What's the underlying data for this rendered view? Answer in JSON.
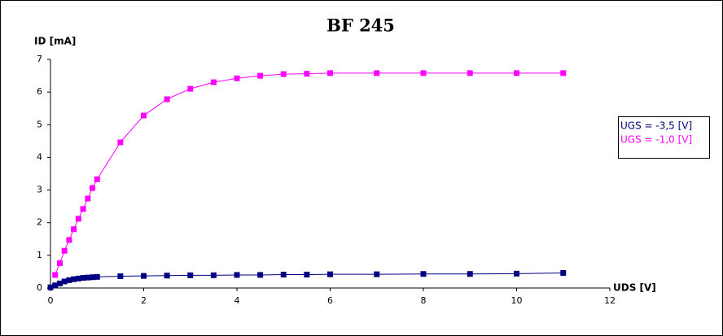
{
  "chart_data": {
    "type": "line",
    "title": "BF 245",
    "y_label": "ID [mA]",
    "x_label": "UDS [V]",
    "xlim": [
      0,
      12
    ],
    "xticks": [
      0,
      2,
      4,
      6,
      8,
      10,
      12
    ],
    "ylim": [
      0,
      7
    ],
    "yticks": [
      0,
      1,
      2,
      3,
      4,
      5,
      6,
      7
    ],
    "grid": false,
    "legend": "right",
    "series": [
      {
        "name": "UGS = -3,5 [V]",
        "color": "#000080",
        "x": [
          0,
          0.1,
          0.2,
          0.3,
          0.4,
          0.5,
          0.6,
          0.7,
          0.8,
          0.9,
          1.0,
          1.5,
          2,
          2.5,
          3,
          3.5,
          4,
          4.5,
          5,
          5.5,
          6,
          7,
          8,
          9,
          10,
          11
        ],
        "values": [
          0.02,
          0.08,
          0.14,
          0.2,
          0.24,
          0.27,
          0.29,
          0.31,
          0.32,
          0.33,
          0.34,
          0.36,
          0.37,
          0.38,
          0.39,
          0.39,
          0.4,
          0.4,
          0.41,
          0.41,
          0.42,
          0.42,
          0.43,
          0.43,
          0.44,
          0.46
        ]
      },
      {
        "name": "UGS = -1,0 [V]",
        "color": "#ff00ff",
        "x": [
          0.1,
          0.2,
          0.3,
          0.4,
          0.5,
          0.6,
          0.7,
          0.8,
          0.9,
          1.0,
          1.5,
          2,
          2.5,
          3,
          3.5,
          4,
          4.5,
          5,
          5.5,
          6,
          7,
          8,
          9,
          10,
          11
        ],
        "values": [
          0.4,
          0.76,
          1.14,
          1.47,
          1.8,
          2.12,
          2.42,
          2.74,
          3.06,
          3.33,
          4.46,
          5.28,
          5.78,
          6.1,
          6.3,
          6.42,
          6.5,
          6.55,
          6.56,
          6.58,
          6.58,
          6.58,
          6.58,
          6.58,
          6.58
        ]
      }
    ]
  }
}
